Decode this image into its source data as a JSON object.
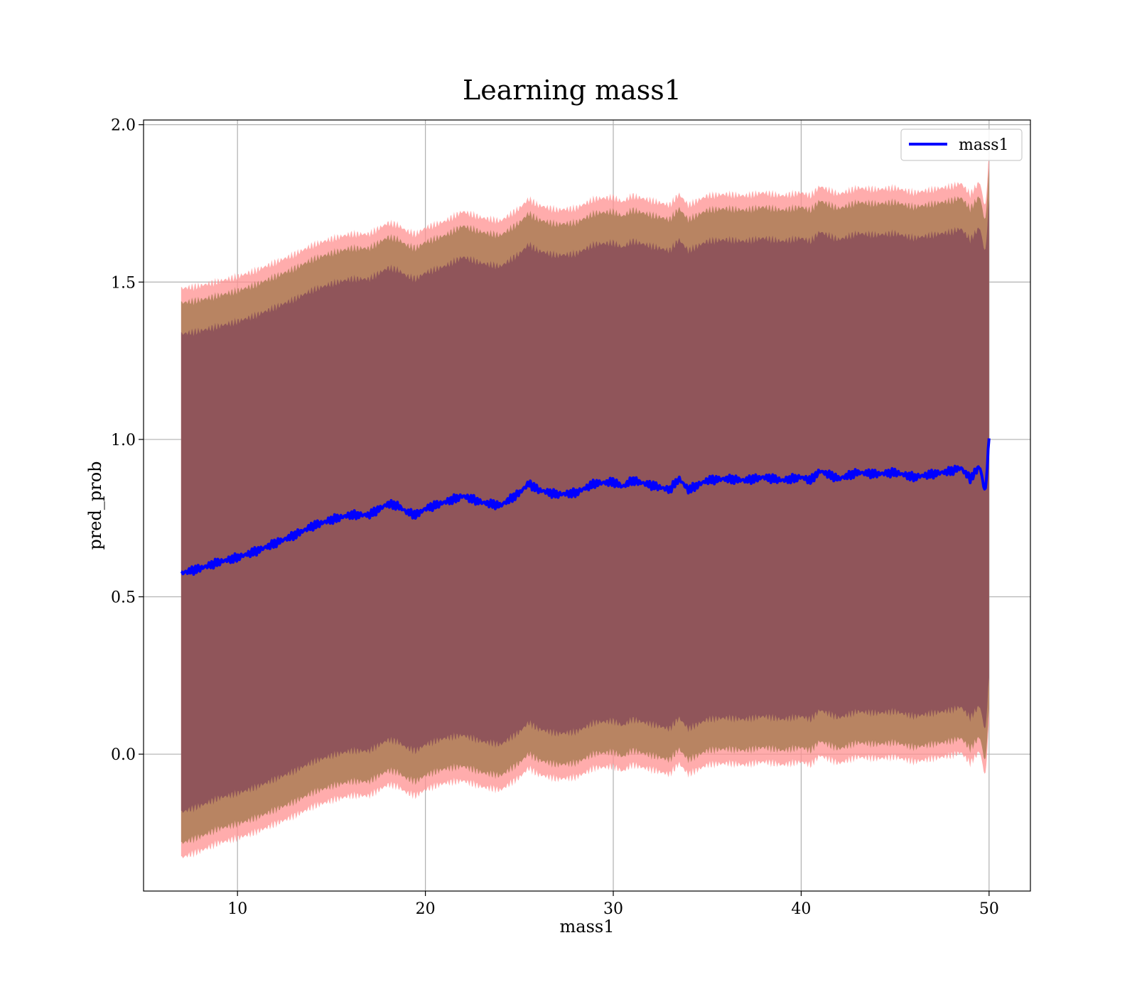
{
  "chart_data": {
    "type": "area",
    "title": "Learning mass1",
    "xlabel": "mass1",
    "ylabel": "pred_prob",
    "xlim": [
      5,
      52.2
    ],
    "ylim": [
      -0.435,
      2.015
    ],
    "xticks": [
      10,
      20,
      30,
      40,
      50
    ],
    "yticks": [
      0.0,
      0.5,
      1.0,
      1.5,
      2.0
    ],
    "xtick_labels": [
      "10",
      "20",
      "30",
      "40",
      "50"
    ],
    "ytick_labels": [
      "0.0",
      "0.5",
      "1.0",
      "1.5",
      "2.0"
    ],
    "grid": true,
    "legend_position": "top-right",
    "band_colors": {
      "outer": "#ff9090",
      "middle": "#b88462",
      "inner": "#7f4257"
    },
    "series": [
      {
        "name": "mass1",
        "color": "#0000ff",
        "x": [
          7.0,
          8.0,
          9.0,
          10.0,
          11.0,
          12.0,
          13.0,
          14.0,
          15.0,
          16.0,
          17.0,
          18.0,
          18.5,
          19.0,
          19.5,
          20.0,
          21.0,
          22.0,
          23.0,
          24.0,
          25.0,
          25.5,
          26.0,
          27.0,
          28.0,
          29.0,
          30.0,
          30.5,
          31.0,
          32.0,
          33.0,
          33.5,
          34.0,
          35.0,
          36.0,
          37.0,
          38.0,
          39.0,
          40.0,
          40.5,
          41.0,
          42.0,
          43.0,
          44.0,
          45.0,
          46.0,
          47.0,
          48.0,
          48.5,
          49.0,
          49.5,
          49.8,
          50.0
        ],
        "mean": [
          0.575,
          0.59,
          0.61,
          0.625,
          0.645,
          0.67,
          0.695,
          0.725,
          0.745,
          0.76,
          0.76,
          0.795,
          0.79,
          0.77,
          0.76,
          0.78,
          0.8,
          0.82,
          0.8,
          0.79,
          0.83,
          0.86,
          0.84,
          0.825,
          0.83,
          0.86,
          0.865,
          0.85,
          0.87,
          0.855,
          0.84,
          0.875,
          0.84,
          0.87,
          0.875,
          0.87,
          0.88,
          0.87,
          0.88,
          0.87,
          0.9,
          0.875,
          0.895,
          0.89,
          0.895,
          0.88,
          0.89,
          0.9,
          0.91,
          0.875,
          0.915,
          0.83,
          1.0
        ],
        "std": [
          0.76,
          0.755,
          0.75,
          0.75,
          0.75,
          0.75,
          0.75,
          0.75,
          0.75,
          0.75,
          0.75,
          0.75,
          0.75,
          0.75,
          0.75,
          0.75,
          0.75,
          0.76,
          0.76,
          0.76,
          0.76,
          0.76,
          0.76,
          0.76,
          0.76,
          0.76,
          0.76,
          0.76,
          0.76,
          0.76,
          0.76,
          0.76,
          0.76,
          0.76,
          0.76,
          0.76,
          0.76,
          0.76,
          0.76,
          0.76,
          0.76,
          0.76,
          0.76,
          0.76,
          0.76,
          0.76,
          0.76,
          0.76,
          0.76,
          0.76,
          0.76,
          0.76,
          0.76
        ]
      }
    ]
  }
}
